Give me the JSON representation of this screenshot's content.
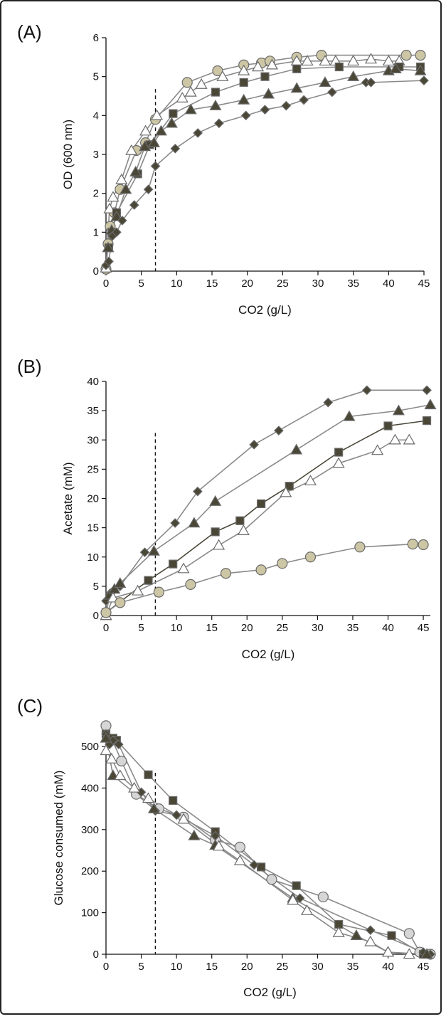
{
  "colors": {
    "line": "#8a8a8a",
    "dark_fill": "#4a4737",
    "tan_fill": "#cdc6a5",
    "light_gray_fill": "#d6d6d6",
    "white_fill": "#ffffff",
    "marker_stroke": "#6b6b6b",
    "axis": "#111111",
    "dashed": "#111111"
  },
  "chart_data": [
    {
      "id": "A",
      "type": "line",
      "panel_label": "(A)",
      "xlabel": "CO2 (g/L)",
      "ylabel": "OD (600 nm)",
      "xlim": [
        0,
        45
      ],
      "ylim": [
        0,
        6
      ],
      "xticks": [
        0,
        5,
        10,
        15,
        20,
        25,
        30,
        35,
        40,
        45
      ],
      "yticks": [
        0,
        1,
        2,
        3,
        4,
        5,
        6
      ],
      "marker_line": 7,
      "series": [
        {
          "marker": "circle",
          "fill": "tan_fill",
          "line": "line",
          "x": [
            0,
            0.3,
            0.6,
            1.2,
            2.0,
            4.3,
            5.6,
            7.0,
            11.5,
            15.8,
            19.5,
            22.0,
            23.2,
            27.0,
            30.5,
            42.5,
            44.5
          ],
          "y": [
            0.05,
            0.7,
            1.15,
            1.5,
            2.1,
            3.1,
            3.3,
            3.9,
            4.85,
            5.15,
            5.3,
            5.35,
            5.4,
            5.5,
            5.55,
            5.55,
            5.55
          ]
        },
        {
          "marker": "triangle",
          "fill": "white_fill",
          "line": "line",
          "x": [
            0,
            0.5,
            1.0,
            2.2,
            3.6,
            5.6,
            7.2,
            10.8,
            12.0,
            13.5,
            16.5,
            19.5,
            21.5,
            23.5,
            27.0,
            28.5,
            31.0,
            32.5,
            35.0,
            37.5,
            40.0,
            41.5
          ],
          "y": [
            0.08,
            1.6,
            1.9,
            2.35,
            3.1,
            3.6,
            4.0,
            4.45,
            4.6,
            4.8,
            5.0,
            5.15,
            5.25,
            5.3,
            5.4,
            5.4,
            5.4,
            5.4,
            5.4,
            5.45,
            5.4,
            5.4
          ]
        },
        {
          "marker": "square",
          "fill": "dark_fill",
          "line": "line",
          "x": [
            0.4,
            0.8,
            1.5,
            4.5,
            6.2,
            9.5,
            15.5,
            19.5,
            22.5,
            27.0,
            33.0,
            41.5,
            44.5
          ],
          "y": [
            0.6,
            1.0,
            1.5,
            2.5,
            3.25,
            4.05,
            4.6,
            4.85,
            5.0,
            5.2,
            5.25,
            5.25,
            5.25
          ],
          "line_x": [
            0.4,
            0.8,
            1.5,
            4.5,
            6.2,
            9.5,
            15.5,
            19.5,
            22.5,
            27.0,
            33.0,
            41.5,
            44.5
          ],
          "line_y": [
            0.6,
            1.0,
            1.5,
            2.5,
            3.25,
            4.05,
            4.6,
            4.85,
            5.0,
            5.2,
            5.25,
            5.25,
            5.25
          ]
        },
        {
          "marker": "triangle",
          "fill": "dark_fill",
          "line": "line",
          "x": [
            0.3,
            0.8,
            1.5,
            2.8,
            4.2,
            5.5,
            6.8,
            7.8,
            9.3,
            12.0,
            15.5,
            19.5,
            23.0,
            27.0,
            31.0,
            35.0,
            40.0,
            41.0,
            44.5
          ],
          "y": [
            0.6,
            1.05,
            1.4,
            2.1,
            2.55,
            3.2,
            3.3,
            3.6,
            3.8,
            4.15,
            4.25,
            4.4,
            4.55,
            4.7,
            4.85,
            5.0,
            5.15,
            5.2,
            5.15
          ]
        },
        {
          "marker": "diamond",
          "fill": "dark_fill",
          "line": "line",
          "x": [
            0,
            0.4,
            0.9,
            1.5,
            2.3,
            4.0,
            6.0,
            7.0,
            9.8,
            13.0,
            16.0,
            19.8,
            22.5,
            25.5,
            28.0,
            32.0,
            36.8,
            37.5,
            45.0
          ],
          "y": [
            0.15,
            0.25,
            0.9,
            1.0,
            1.3,
            1.7,
            2.1,
            2.7,
            3.15,
            3.55,
            3.8,
            4.0,
            4.15,
            4.25,
            4.4,
            4.6,
            4.85,
            4.85,
            4.9
          ]
        }
      ]
    },
    {
      "id": "B",
      "type": "line",
      "panel_label": "(B)",
      "xlabel": "CO2 (g/L)",
      "ylabel": "Acetate (mM)",
      "xlim": [
        0,
        46
      ],
      "ylim": [
        0,
        40
      ],
      "xticks": [
        0,
        5,
        10,
        15,
        20,
        25,
        30,
        35,
        40,
        45
      ],
      "yticks": [
        0,
        5,
        10,
        15,
        20,
        25,
        30,
        35,
        40
      ],
      "marker_line": 7,
      "series": [
        {
          "marker": "diamond",
          "fill": "dark_fill",
          "line": "line",
          "x": [
            0,
            0.6,
            1.0,
            2.0,
            5.5,
            9.8,
            13.0,
            21.0,
            24.5,
            31.5,
            37.0,
            45.5
          ],
          "y": [
            2.5,
            3.8,
            4.2,
            5.0,
            10.8,
            15.8,
            21.2,
            29.2,
            31.6,
            36.4,
            38.5,
            38.5
          ]
        },
        {
          "marker": "triangle",
          "fill": "dark_fill",
          "line": "line",
          "x": [
            0,
            0.5,
            1.2,
            2.0,
            6.8,
            12.5,
            15.5,
            27.0,
            34.5,
            41.5,
            46.0
          ],
          "y": [
            0,
            3.5,
            4.5,
            5.5,
            11.0,
            15.8,
            19.5,
            28.3,
            34.0,
            35.0,
            36.0
          ]
        },
        {
          "marker": "square",
          "fill": "dark_fill",
          "line": "dark_fill",
          "x": [
            0,
            6.0,
            9.5,
            15.5,
            19.0,
            22.0,
            26.0,
            33.0,
            40.0,
            45.5
          ],
          "y": [
            0.5,
            6.0,
            8.8,
            14.3,
            16.2,
            19.1,
            22.1,
            27.9,
            32.4,
            33.3
          ]
        },
        {
          "marker": "triangle",
          "fill": "white_fill",
          "line": "line",
          "x": [
            0,
            1.0,
            4.5,
            11.0,
            16.0,
            19.5,
            25.5,
            29.0,
            33.0,
            38.5,
            41.0,
            43.0
          ],
          "y": [
            0,
            3.0,
            4.2,
            8.0,
            12.0,
            14.5,
            21.0,
            23.0,
            26.0,
            28.2,
            30.0,
            30.0
          ]
        },
        {
          "marker": "circle",
          "fill": "tan_fill",
          "line": "line",
          "x": [
            0,
            2.0,
            7.5,
            12.0,
            17.0,
            22.0,
            25.0,
            29.0,
            36.0,
            43.5,
            45.0
          ],
          "y": [
            0.5,
            2.2,
            4.0,
            5.3,
            7.2,
            7.8,
            8.9,
            10.0,
            11.7,
            12.2,
            12.1
          ]
        }
      ]
    },
    {
      "id": "C",
      "type": "line",
      "panel_label": "(C)",
      "xlabel": "CO2 (g/L)",
      "ylabel": "Glucose consumed (mM)",
      "xlim": [
        0,
        46.5
      ],
      "ylim": [
        0,
        560
      ],
      "xticks": [
        0,
        5,
        10,
        15,
        20,
        25,
        30,
        35,
        40,
        45
      ],
      "yticks": [
        0,
        100,
        200,
        300,
        400,
        500
      ],
      "marker_line": 7,
      "series": [
        {
          "marker": "circle",
          "fill": "light_gray_fill",
          "line": "line",
          "x": [
            0,
            2.2,
            4.3,
            7.5,
            11.0,
            15.5,
            19.0,
            23.5,
            30.8,
            43.0,
            44.5,
            46.0
          ],
          "y": [
            550,
            465,
            385,
            350,
            330,
            275,
            258,
            180,
            138,
            50,
            5,
            0
          ]
        },
        {
          "marker": "square",
          "fill": "dark_fill",
          "line": "line",
          "x": [
            0,
            1.0,
            1.5,
            6.0,
            9.5,
            15.5,
            22.0,
            27.0,
            33.0,
            40.5,
            45.0
          ],
          "y": [
            530,
            520,
            515,
            432,
            370,
            295,
            210,
            165,
            72,
            45,
            0
          ]
        },
        {
          "marker": "diamond",
          "fill": "dark_fill",
          "line": "line",
          "x": [
            0,
            0.5,
            1.0,
            1.8,
            5.0,
            7.0,
            10.0,
            15.5,
            21.0,
            27.5,
            37.5,
            45.0,
            46.0
          ],
          "y": [
            530,
            505,
            515,
            505,
            390,
            345,
            335,
            285,
            215,
            135,
            58,
            5,
            0
          ]
        },
        {
          "marker": "triangle",
          "fill": "dark_fill",
          "line": "line",
          "x": [
            0,
            1.0,
            6.8,
            12.5,
            15.5,
            26.5,
            35.5,
            40.0,
            45.5
          ],
          "y": [
            520,
            430,
            350,
            285,
            262,
            135,
            45,
            5,
            0
          ]
        },
        {
          "marker": "triangle",
          "fill": "white_fill",
          "line": "line",
          "x": [
            0,
            0.8,
            2.0,
            4.0,
            6.0,
            11.0,
            16.0,
            19.0,
            26.5,
            28.5,
            33.0,
            37.5,
            40.0,
            43.0
          ],
          "y": [
            490,
            470,
            430,
            400,
            375,
            325,
            260,
            225,
            130,
            105,
            52,
            30,
            5,
            0
          ]
        }
      ]
    }
  ]
}
